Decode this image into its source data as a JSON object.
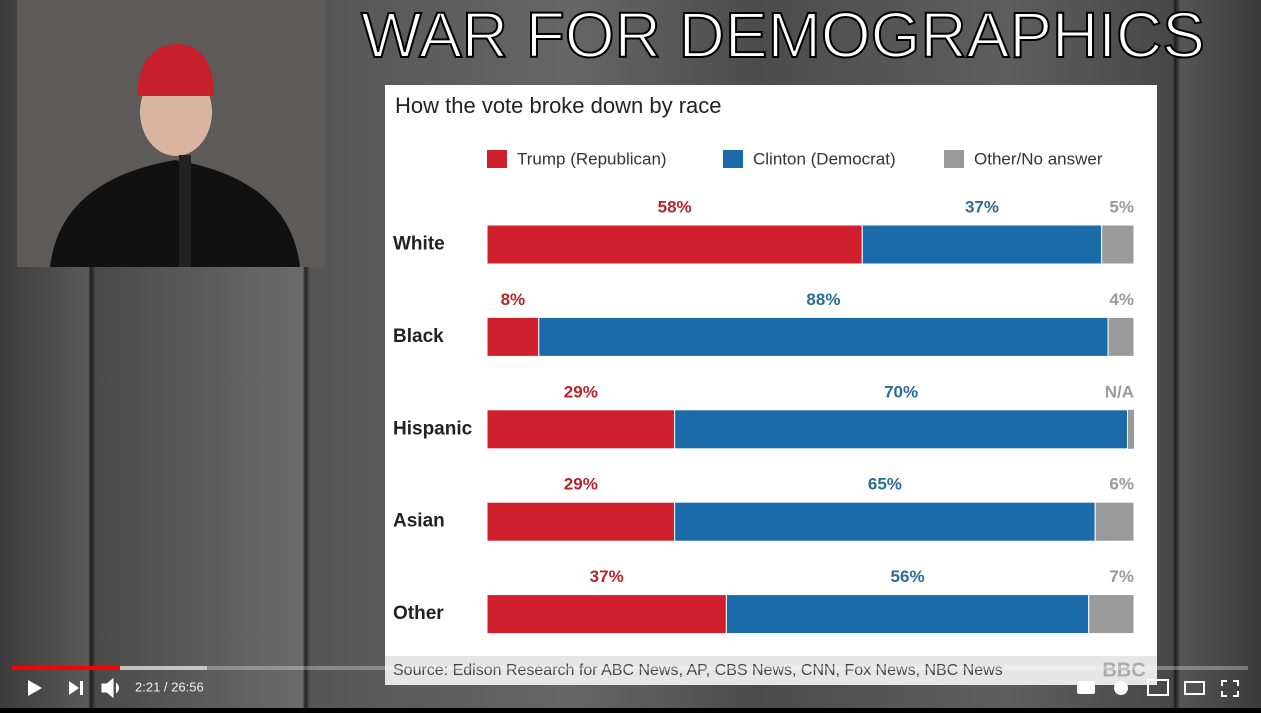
{
  "video": {
    "title": "WAR FOR DEMOGRAPHICS",
    "time": "2:21 / 26:56",
    "logo": "BBC"
  },
  "chart_data": {
    "type": "stacked-bar-horizontal",
    "title": "How the vote broke down by race",
    "source": "Source: Edison Research for ABC News, AP, CBS News, CNN, Fox News, NBC News",
    "categories": [
      "White",
      "Black",
      "Hispanic",
      "Asian",
      "Other"
    ],
    "xlim": [
      0,
      100
    ],
    "series": [
      {
        "name": "Trump (Republican)",
        "color": "#d0202e",
        "label_color": "#b8232d",
        "values": [
          58,
          8,
          29,
          29,
          37
        ],
        "value_labels": [
          "58%",
          "8%",
          "29%",
          "29%",
          "37%"
        ]
      },
      {
        "name": "Clinton (Democrat)",
        "color": "#1b6aaa",
        "label_color": "#2c6c98",
        "values": [
          37,
          88,
          70,
          65,
          56
        ],
        "value_labels": [
          "37%",
          "88%",
          "70%",
          "65%",
          "56%"
        ]
      },
      {
        "name": "Other/No answer",
        "color": "#9a9a9a",
        "label_color": "#9a9a9a",
        "values": [
          5,
          4,
          null,
          6,
          7
        ],
        "value_labels": [
          "5%",
          "4%",
          "N/A",
          "6%",
          "7%"
        ]
      }
    ]
  }
}
